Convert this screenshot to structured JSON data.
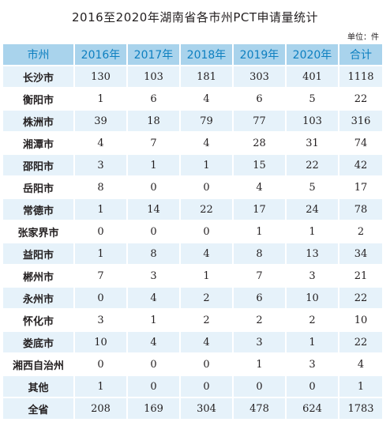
{
  "title": "2016至2020年湖南省各市州PCT申请量统计",
  "unit": "单位：件",
  "table": {
    "headers": [
      "市州",
      "2016年",
      "2017年",
      "2018年",
      "2019年",
      "2020年",
      "合计"
    ],
    "rows": [
      [
        "长沙市",
        "130",
        "103",
        "181",
        "303",
        "401",
        "1118"
      ],
      [
        "衡阳市",
        "1",
        "6",
        "4",
        "6",
        "5",
        "22"
      ],
      [
        "株洲市",
        "39",
        "18",
        "79",
        "77",
        "103",
        "316"
      ],
      [
        "湘潭市",
        "4",
        "7",
        "4",
        "28",
        "31",
        "74"
      ],
      [
        "邵阳市",
        "3",
        "1",
        "1",
        "15",
        "22",
        "42"
      ],
      [
        "岳阳市",
        "8",
        "0",
        "0",
        "4",
        "5",
        "17"
      ],
      [
        "常德市",
        "1",
        "14",
        "22",
        "17",
        "24",
        "78"
      ],
      [
        "张家界市",
        "0",
        "0",
        "0",
        "1",
        "1",
        "2"
      ],
      [
        "益阳市",
        "1",
        "8",
        "4",
        "8",
        "13",
        "34"
      ],
      [
        "郴州市",
        "7",
        "3",
        "1",
        "7",
        "3",
        "21"
      ],
      [
        "永州市",
        "0",
        "4",
        "2",
        "6",
        "10",
        "22"
      ],
      [
        "怀化市",
        "3",
        "1",
        "2",
        "2",
        "2",
        "10"
      ],
      [
        "娄底市",
        "10",
        "4",
        "4",
        "3",
        "1",
        "22"
      ],
      [
        "湘西自治州",
        "0",
        "0",
        "0",
        "1",
        "3",
        "4"
      ],
      [
        "其他",
        "1",
        "0",
        "0",
        "0",
        "0",
        "1"
      ]
    ],
    "total": [
      "全省",
      "208",
      "169",
      "304",
      "478",
      "624",
      "1783"
    ]
  }
}
